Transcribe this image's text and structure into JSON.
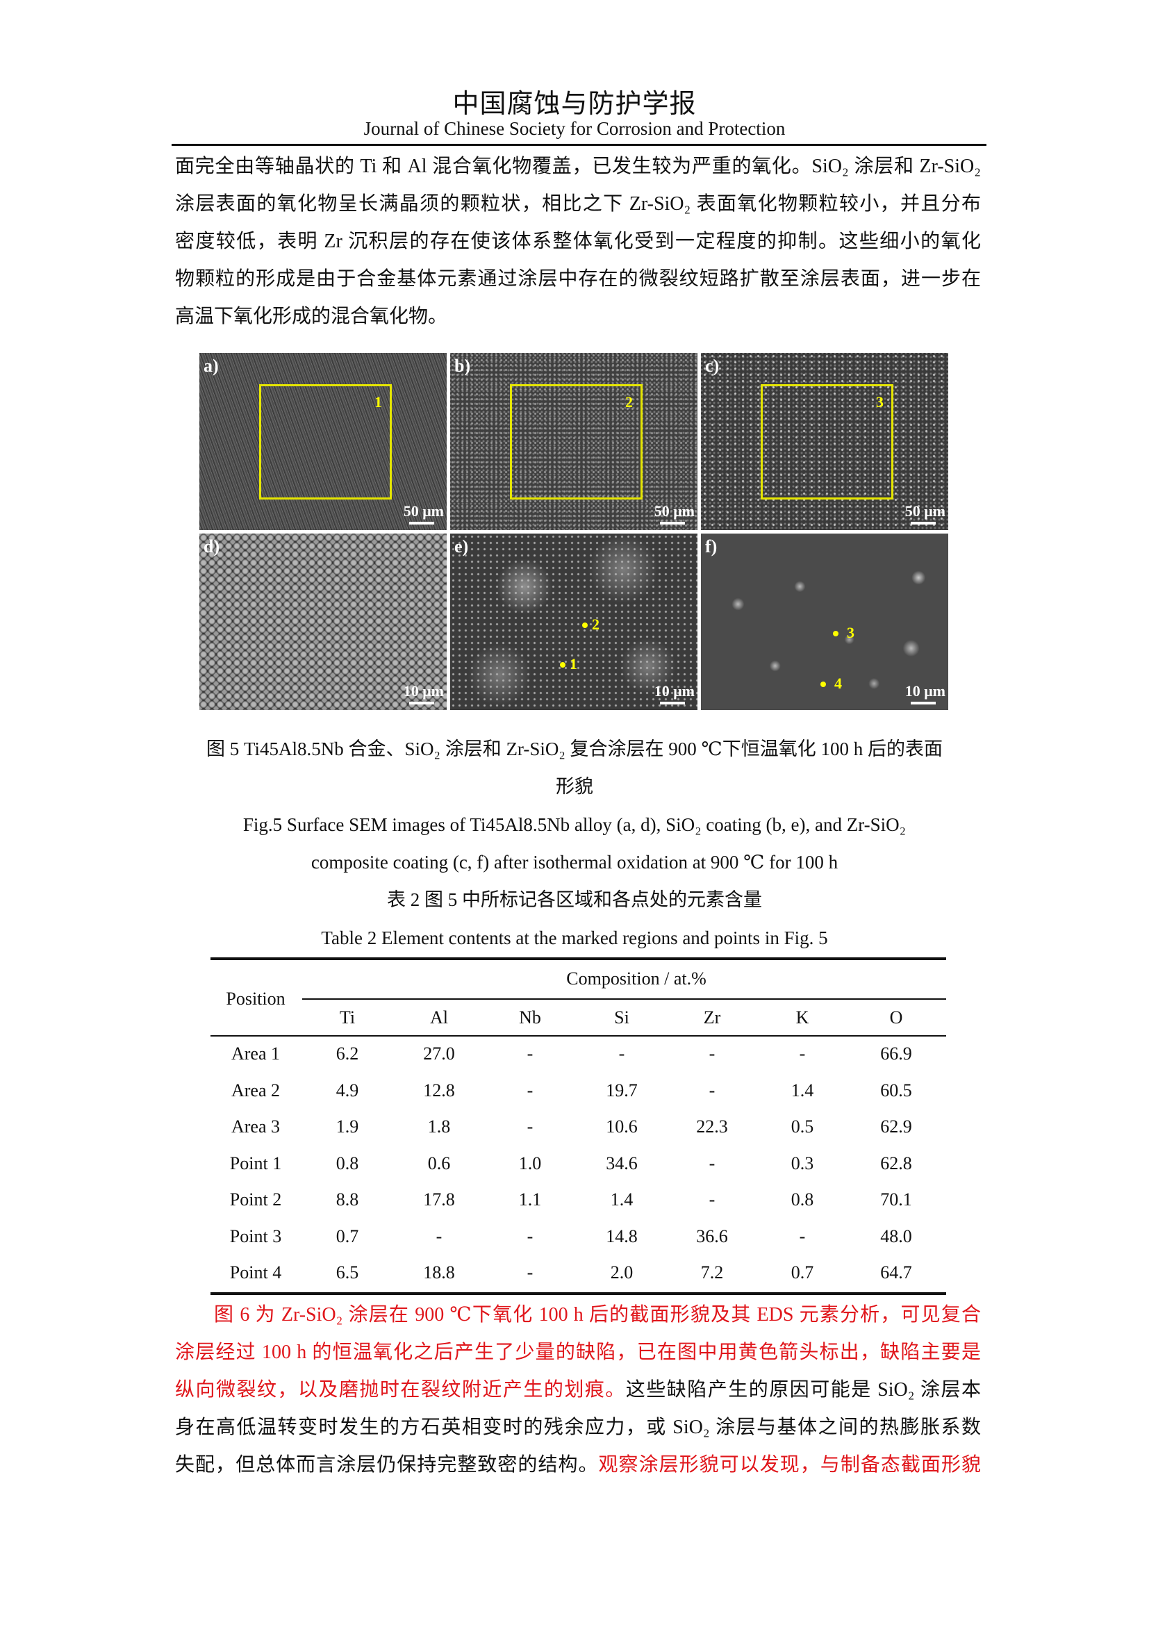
{
  "header": {
    "journal_cn": "中国腐蚀与防护学报",
    "journal_en": "Journal of Chinese Society for Corrosion and Protection"
  },
  "paragraph1": {
    "lines": [
      "面完全由等轴晶状的 Ti 和 Al 混合氧化物覆盖，已发生较为严重的氧化。SiO₂ 涂层和 Zr-SiO₂",
      "涂层表面的氧化物呈长满晶须的颗粒状，相比之下 Zr-SiO₂ 表面氧化物颗粒较小，并且分布",
      "密度较低，表明 Zr 沉积层的存在使该体系整体氧化受到一定程度的抑制。这些细小的氧化",
      "物颗粒的形成是由于合金基体元素通过涂层中存在的微裂纹短路扩散至涂层表面，进一步在",
      "高温下氧化形成的混合氧化物。"
    ]
  },
  "figure": {
    "panels": [
      {
        "label": "a)",
        "scale": "50 μm",
        "region": "1"
      },
      {
        "label": "b)",
        "scale": "50 μm",
        "region": "2"
      },
      {
        "label": "c)",
        "scale": "50 μm",
        "region": "3"
      },
      {
        "label": "d)",
        "scale": "10 μm"
      },
      {
        "label": "e)",
        "scale": "10 μm",
        "points": [
          "1",
          "2"
        ]
      },
      {
        "label": "f)",
        "scale": "10 μm",
        "points": [
          "3",
          "4"
        ]
      }
    ],
    "marker_color": "#ffff00"
  },
  "figure_caption": {
    "cn_line1": "图 5 Ti45Al8.5Nb 合金、SiO₂ 涂层和 Zr-SiO₂ 复合涂层在 900 ℃下恒温氧化 100 h 后的表面",
    "cn_line2": "形貌",
    "en_line1": "Fig.5 Surface SEM images of Ti45Al8.5Nb alloy (a, d), SiO₂ coating (b, e), and Zr-SiO₂",
    "en_line2": "composite coating (c, f) after isothermal oxidation at 900 ℃ for 100 h"
  },
  "table_caption": {
    "cn": "表 2  图 5 中所标记各区域和各点处的元素含量",
    "en": "Table 2 Element contents at the marked regions and points in Fig. 5"
  },
  "table": {
    "position_header": "Position",
    "group_header": "Composition / at.%",
    "columns": [
      "Ti",
      "Al",
      "Nb",
      "Si",
      "Zr",
      "K",
      "O"
    ],
    "rows": [
      [
        "Area 1",
        "6.2",
        "27.0",
        "-",
        "-",
        "-",
        "-",
        "66.9"
      ],
      [
        "Area 2",
        "4.9",
        "12.8",
        "-",
        "19.7",
        "-",
        "1.4",
        "60.5"
      ],
      [
        "Area 3",
        "1.9",
        "1.8",
        "-",
        "10.6",
        "22.3",
        "0.5",
        "62.9"
      ],
      [
        "Point 1",
        "0.8",
        "0.6",
        "1.0",
        "34.6",
        "-",
        "0.3",
        "62.8"
      ],
      [
        "Point 2",
        "8.8",
        "17.8",
        "1.1",
        "1.4",
        "-",
        "0.8",
        "70.1"
      ],
      [
        "Point 3",
        "0.7",
        "-",
        "-",
        "14.8",
        "36.6",
        "-",
        "48.0"
      ],
      [
        "Point 4",
        "6.5",
        "18.8",
        "-",
        "2.0",
        "7.2",
        "0.7",
        "64.7"
      ]
    ]
  },
  "paragraph2": {
    "highlight_color": "#e0161b",
    "lines": [
      {
        "segments": [
          {
            "text": "图 6 为 Zr-SiO₂ 涂层在 900 ℃下氧化 100 h 后的截面形貌及其 EDS 元素分析，可见复合",
            "red": true
          }
        ]
      },
      {
        "segments": [
          {
            "text": "涂层经过 100 h 的恒温氧化之后产生了少量的缺陷，已在图中用黄色箭头标出，缺陷主要是",
            "red": true
          }
        ]
      },
      {
        "segments": [
          {
            "text": "纵向微裂纹，以及磨抛时在裂纹附近产生的划痕。",
            "red": true
          },
          {
            "text": "这些缺陷产生的原因可能是 SiO₂ 涂层本",
            "red": false
          }
        ]
      },
      {
        "segments": [
          {
            "text": "身在高低温转变时发生的方石英相变时的残余应力，或 SiO₂ 涂层与基体之间的热膨胀系数",
            "red": false
          }
        ]
      },
      {
        "segments": [
          {
            "text": "失配，但总体而言涂层仍保持完整致密的结构。",
            "red": false
          },
          {
            "text": "观察涂层形貌可以发现，与制备态截面形貌",
            "red": true
          }
        ]
      }
    ]
  }
}
